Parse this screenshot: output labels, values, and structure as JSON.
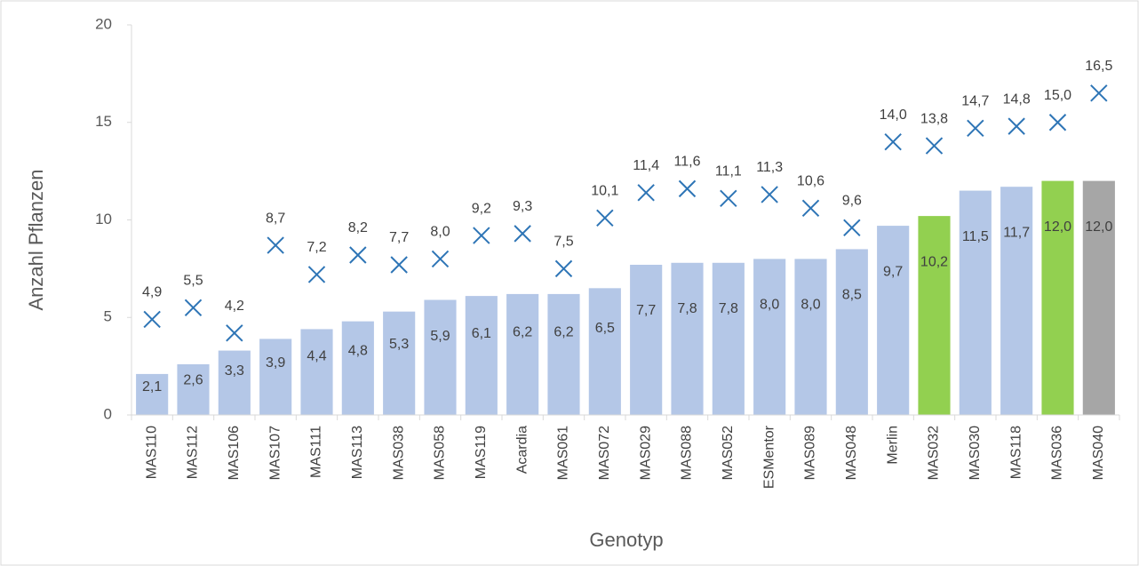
{
  "chart_data": {
    "type": "bar",
    "y_label": "Anzahl Pflanzen",
    "x_label": "Genotyp",
    "categories": [
      "MAS110",
      "MAS112",
      "MAS106",
      "MAS107",
      "MAS111",
      "MAS113",
      "MAS038",
      "MAS058",
      "MAS119",
      "Acardia",
      "MAS061",
      "MAS072",
      "MAS029",
      "MAS088",
      "MAS052",
      "ESMentor",
      "MAS089",
      "MAS048",
      "Merlin",
      "MAS032",
      "MAS030",
      "MAS118",
      "MAS036",
      "MAS040"
    ],
    "series": [
      {
        "type": "bar",
        "colors": [
          "#b4c7e7",
          "#b4c7e7",
          "#b4c7e7",
          "#b4c7e7",
          "#b4c7e7",
          "#b4c7e7",
          "#b4c7e7",
          "#b4c7e7",
          "#b4c7e7",
          "#b4c7e7",
          "#b4c7e7",
          "#b4c7e7",
          "#b4c7e7",
          "#b4c7e7",
          "#b4c7e7",
          "#b4c7e7",
          "#b4c7e7",
          "#b4c7e7",
          "#b4c7e7",
          "#92d050",
          "#b4c7e7",
          "#b4c7e7",
          "#92d050",
          "#a6a6a6"
        ],
        "values": [
          2.1,
          2.6,
          3.3,
          3.9,
          4.4,
          4.8,
          5.3,
          5.9,
          6.1,
          6.2,
          6.2,
          6.5,
          7.7,
          7.8,
          7.8,
          8.0,
          8.0,
          8.5,
          9.7,
          10.2,
          11.5,
          11.7,
          12.0,
          12.0
        ],
        "value_labels": [
          "2,1",
          "2,6",
          "3,3",
          "3,9",
          "4,4",
          "4,8",
          "5,3",
          "5,9",
          "6,1",
          "6,2",
          "6,2",
          "6,5",
          "7,7",
          "7,8",
          "7,8",
          "8,0",
          "8,0",
          "8,5",
          "9,7",
          "10,2",
          "11,5",
          "11,7",
          "12,0",
          "12,0"
        ]
      },
      {
        "type": "scatter",
        "color": "#2e75b6",
        "values": [
          4.9,
          5.5,
          4.2,
          8.7,
          7.2,
          8.2,
          7.7,
          8.0,
          9.2,
          9.3,
          7.5,
          10.1,
          11.4,
          11.6,
          11.1,
          11.3,
          10.6,
          9.6,
          14.0,
          13.8,
          14.7,
          14.8,
          15.0,
          16.5
        ],
        "value_labels": [
          "4,9",
          "5,5",
          "4,2",
          "8,7",
          "7,2",
          "8,2",
          "7,7",
          "8,0",
          "9,2",
          "9,3",
          "7,5",
          "10,1",
          "11,4",
          "11,6",
          "11,1",
          "11,3",
          "10,6",
          "9,6",
          "14,0",
          "13,8",
          "14,7",
          "14,8",
          "15,0",
          "16,5"
        ]
      }
    ],
    "ylim": [
      0,
      20
    ],
    "yticks": [
      0,
      5,
      10,
      15,
      20
    ],
    "grid": false
  }
}
